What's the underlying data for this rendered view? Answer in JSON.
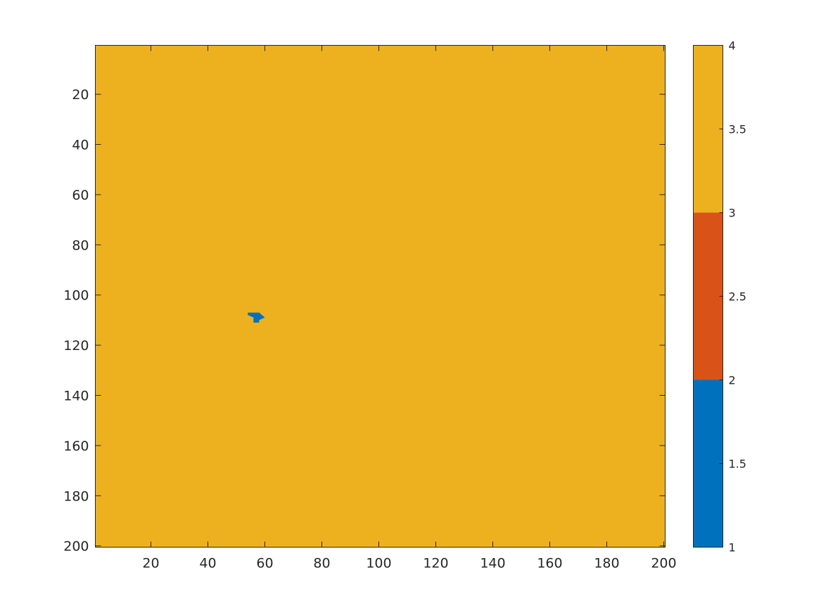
{
  "chart_data": {
    "type": "heatmap",
    "title": "",
    "xlabel": "",
    "ylabel": "",
    "xlim": [
      0.5,
      200.5
    ],
    "ylim": [
      0.5,
      200.5
    ],
    "y_reversed": true,
    "xticks": [
      20,
      40,
      60,
      80,
      100,
      120,
      140,
      160,
      180,
      200
    ],
    "yticks": [
      20,
      40,
      60,
      80,
      100,
      120,
      140,
      160,
      180,
      200
    ],
    "xtick_labels": [
      "20",
      "40",
      "60",
      "80",
      "100",
      "120",
      "140",
      "160",
      "180",
      "200"
    ],
    "ytick_labels": [
      "20",
      "40",
      "60",
      "80",
      "100",
      "120",
      "140",
      "160",
      "180",
      "200"
    ],
    "background_value": 4,
    "colormap": {
      "colors": [
        "#0072BD",
        "#D95319",
        "#EDB120"
      ],
      "clim": [
        1,
        4
      ]
    },
    "colorbar": {
      "ticks": [
        1,
        1.5,
        2,
        2.5,
        3,
        3.5,
        4
      ],
      "tick_labels": [
        "1",
        "1.5",
        "2",
        "2.5",
        "3",
        "3.5",
        "4"
      ]
    },
    "regions": [
      {
        "value": 3,
        "polygon": [
          [
            43,
            79
          ],
          [
            48,
            79
          ],
          [
            49,
            78
          ],
          [
            50,
            79
          ],
          [
            52,
            79
          ],
          [
            52,
            88
          ],
          [
            54,
            91
          ],
          [
            57,
            96
          ],
          [
            61,
            100
          ],
          [
            66,
            104
          ],
          [
            69,
            104
          ],
          [
            69,
            107
          ],
          [
            66,
            108
          ],
          [
            63,
            108
          ],
          [
            59,
            108
          ],
          [
            57,
            106
          ],
          [
            54,
            104
          ],
          [
            48,
            100
          ],
          [
            45,
            98
          ],
          [
            40,
            98
          ],
          [
            39,
            93
          ],
          [
            40,
            87
          ],
          [
            41,
            84
          ],
          [
            42,
            81
          ]
        ]
      },
      {
        "value": 1,
        "polygon": [
          [
            54,
            107
          ],
          [
            58,
            107
          ],
          [
            59,
            108
          ],
          [
            60,
            109
          ],
          [
            58,
            110
          ],
          [
            58,
            111
          ],
          [
            56,
            111
          ],
          [
            56,
            109
          ],
          [
            54,
            108
          ]
        ]
      },
      {
        "value": 3,
        "polygon": [
          [
            107,
            121
          ],
          [
            113,
            121
          ],
          [
            114,
            123
          ],
          [
            116,
            125
          ],
          [
            117,
            129
          ],
          [
            117,
            132
          ],
          [
            119,
            134
          ],
          [
            122,
            135
          ],
          [
            123,
            137
          ],
          [
            123,
            139
          ],
          [
            122,
            142
          ],
          [
            121,
            145
          ],
          [
            120,
            145
          ],
          [
            119,
            142
          ],
          [
            119,
            138
          ],
          [
            116,
            137
          ],
          [
            113,
            136
          ],
          [
            111,
            134
          ],
          [
            110,
            130
          ],
          [
            110,
            125
          ],
          [
            109,
            122
          ],
          [
            107,
            122
          ]
        ]
      },
      {
        "value": 3,
        "polygon": [
          [
            128,
            118
          ],
          [
            130,
            118
          ],
          [
            132,
            120
          ],
          [
            135,
            120
          ],
          [
            138,
            122
          ],
          [
            140,
            125
          ],
          [
            142,
            128
          ],
          [
            142,
            132
          ],
          [
            140,
            134
          ],
          [
            135,
            134
          ],
          [
            132,
            133
          ],
          [
            130,
            130
          ],
          [
            129,
            127
          ],
          [
            128,
            124
          ],
          [
            127,
            121
          ],
          [
            127,
            119
          ]
        ]
      }
    ]
  }
}
